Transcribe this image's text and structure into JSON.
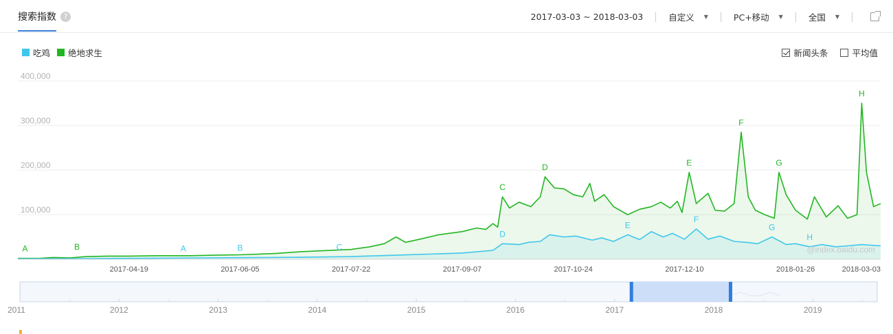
{
  "header": {
    "title": "搜索指数",
    "help_icon": "question-circle-icon",
    "date_range": "2017-03-03 ~ 2018-03-03",
    "period_label": "自定义",
    "device_label": "PC+移动",
    "region_label": "全国",
    "export_icon": "external-link-icon"
  },
  "legend": [
    {
      "name": "吃鸡",
      "color": "#3fc6ec"
    },
    {
      "name": "绝地求生",
      "color": "#22b522"
    }
  ],
  "toggles": {
    "news": {
      "label": "新闻头条",
      "checked": true
    },
    "average": {
      "label": "平均值",
      "checked": false
    }
  },
  "watermark": "@index.baidu.com",
  "chart_data": {
    "type": "line",
    "x_start": "2017-03-03",
    "x_end": "2018-03-03",
    "xtick_labels": [
      "2017-04-19",
      "2017-06-05",
      "2017-07-22",
      "2017-09-07",
      "2017-10-24",
      "2017-12-10",
      "2018-01-26",
      "2018-03-03"
    ],
    "xtick_dates": [
      "2017-04-19",
      "2017-06-05",
      "2017-07-22",
      "2017-09-07",
      "2017-10-24",
      "2017-12-10",
      "2018-01-26",
      "2018-03-03"
    ],
    "ylim": [
      0,
      400000
    ],
    "ytick_values": [
      100000,
      200000,
      300000,
      400000
    ],
    "ytick_labels": [
      "100,000",
      "200,000",
      "300,000",
      "400,000"
    ],
    "grid": true,
    "series": [
      {
        "name": "绝地求生",
        "color": "#22b522",
        "points": [
          [
            "2017-03-03",
            2000
          ],
          [
            "2017-03-12",
            2000
          ],
          [
            "2017-03-18",
            4000
          ],
          [
            "2017-03-25",
            3000
          ],
          [
            "2017-04-01",
            6000
          ],
          [
            "2017-04-10",
            7000
          ],
          [
            "2017-04-19",
            7000
          ],
          [
            "2017-05-01",
            8000
          ],
          [
            "2017-05-15",
            8000
          ],
          [
            "2017-05-25",
            9000
          ],
          [
            "2017-06-05",
            10000
          ],
          [
            "2017-06-20",
            13000
          ],
          [
            "2017-07-01",
            17000
          ],
          [
            "2017-07-22",
            22000
          ],
          [
            "2017-07-30",
            28000
          ],
          [
            "2017-08-05",
            35000
          ],
          [
            "2017-08-10",
            50000
          ],
          [
            "2017-08-14",
            38000
          ],
          [
            "2017-08-20",
            45000
          ],
          [
            "2017-08-28",
            55000
          ],
          [
            "2017-09-07",
            62000
          ],
          [
            "2017-09-13",
            70000
          ],
          [
            "2017-09-17",
            67000
          ],
          [
            "2017-09-20",
            80000
          ],
          [
            "2017-09-22",
            72000
          ],
          [
            "2017-09-24",
            140000
          ],
          [
            "2017-09-27",
            115000
          ],
          [
            "2017-10-01",
            128000
          ],
          [
            "2017-10-06",
            118000
          ],
          [
            "2017-10-10",
            140000
          ],
          [
            "2017-10-12",
            185000
          ],
          [
            "2017-10-16",
            160000
          ],
          [
            "2017-10-20",
            158000
          ],
          [
            "2017-10-24",
            145000
          ],
          [
            "2017-10-28",
            140000
          ],
          [
            "2017-10-31",
            170000
          ],
          [
            "2017-11-02",
            130000
          ],
          [
            "2017-11-06",
            145000
          ],
          [
            "2017-11-10",
            118000
          ],
          [
            "2017-11-16",
            100000
          ],
          [
            "2017-11-21",
            112000
          ],
          [
            "2017-11-26",
            118000
          ],
          [
            "2017-11-30",
            128000
          ],
          [
            "2017-12-04",
            115000
          ],
          [
            "2017-12-07",
            130000
          ],
          [
            "2017-12-09",
            105000
          ],
          [
            "2017-12-12",
            195000
          ],
          [
            "2017-12-15",
            125000
          ],
          [
            "2017-12-20",
            148000
          ],
          [
            "2017-12-23",
            110000
          ],
          [
            "2017-12-27",
            108000
          ],
          [
            "2017-12-31",
            125000
          ],
          [
            "2018-01-03",
            285000
          ],
          [
            "2018-01-06",
            140000
          ],
          [
            "2018-01-09",
            110000
          ],
          [
            "2018-01-13",
            100000
          ],
          [
            "2018-01-17",
            92000
          ],
          [
            "2018-01-19",
            195000
          ],
          [
            "2018-01-22",
            145000
          ],
          [
            "2018-01-26",
            110000
          ],
          [
            "2018-01-31",
            90000
          ],
          [
            "2018-02-03",
            140000
          ],
          [
            "2018-02-08",
            95000
          ],
          [
            "2018-02-13",
            120000
          ],
          [
            "2018-02-17",
            92000
          ],
          [
            "2018-02-21",
            100000
          ],
          [
            "2018-02-23",
            350000
          ],
          [
            "2018-02-25",
            195000
          ],
          [
            "2018-02-28",
            118000
          ],
          [
            "2018-03-03",
            125000
          ]
        ]
      },
      {
        "name": "吃鸡",
        "color": "#3fc6ec",
        "points": [
          [
            "2017-03-03",
            1000
          ],
          [
            "2017-04-01",
            1500
          ],
          [
            "2017-05-01",
            2500
          ],
          [
            "2017-06-05",
            3500
          ],
          [
            "2017-07-01",
            4500
          ],
          [
            "2017-07-22",
            6000
          ],
          [
            "2017-08-10",
            9000
          ],
          [
            "2017-09-07",
            14000
          ],
          [
            "2017-09-20",
            20000
          ],
          [
            "2017-09-24",
            35000
          ],
          [
            "2017-10-01",
            33000
          ],
          [
            "2017-10-05",
            38000
          ],
          [
            "2017-10-10",
            40000
          ],
          [
            "2017-10-14",
            55000
          ],
          [
            "2017-10-20",
            50000
          ],
          [
            "2017-10-25",
            52000
          ],
          [
            "2017-11-01",
            43000
          ],
          [
            "2017-11-05",
            48000
          ],
          [
            "2017-11-10",
            40000
          ],
          [
            "2017-11-16",
            55000
          ],
          [
            "2017-11-21",
            44000
          ],
          [
            "2017-11-26",
            62000
          ],
          [
            "2017-12-01",
            50000
          ],
          [
            "2017-12-05",
            58000
          ],
          [
            "2017-12-10",
            45000
          ],
          [
            "2017-12-15",
            68000
          ],
          [
            "2017-12-20",
            45000
          ],
          [
            "2017-12-25",
            52000
          ],
          [
            "2017-12-31",
            40000
          ],
          [
            "2018-01-05",
            38000
          ],
          [
            "2018-01-10",
            35000
          ],
          [
            "2018-01-16",
            50000
          ],
          [
            "2018-01-22",
            33000
          ],
          [
            "2018-01-26",
            35000
          ],
          [
            "2018-02-01",
            28000
          ],
          [
            "2018-02-06",
            33000
          ],
          [
            "2018-02-12",
            28000
          ],
          [
            "2018-02-17",
            30000
          ],
          [
            "2018-02-23",
            33000
          ],
          [
            "2018-03-03",
            30000
          ]
        ]
      }
    ],
    "annotations": [
      {
        "series": "绝地求生",
        "label": "A",
        "date": "2017-03-06",
        "value": 2000
      },
      {
        "series": "绝地求生",
        "label": "B",
        "date": "2017-03-28",
        "value": 6000
      },
      {
        "series": "绝地求生",
        "label": "C",
        "date": "2017-09-24",
        "value": 140000
      },
      {
        "series": "绝地求生",
        "label": "D",
        "date": "2017-10-12",
        "value": 185000
      },
      {
        "series": "绝地求生",
        "label": "E",
        "date": "2017-12-12",
        "value": 195000
      },
      {
        "series": "绝地求生",
        "label": "F",
        "date": "2018-01-03",
        "value": 285000
      },
      {
        "series": "绝地求生",
        "label": "G",
        "date": "2018-01-19",
        "value": 195000
      },
      {
        "series": "绝地求生",
        "label": "H",
        "date": "2018-02-23",
        "value": 350000
      },
      {
        "series": "吃鸡",
        "label": "A",
        "date": "2017-05-12",
        "value": 2500
      },
      {
        "series": "吃鸡",
        "label": "B",
        "date": "2017-06-05",
        "value": 3500
      },
      {
        "series": "吃鸡",
        "label": "C",
        "date": "2017-07-17",
        "value": 5500
      },
      {
        "series": "吃鸡",
        "label": "D",
        "date": "2017-09-24",
        "value": 35000
      },
      {
        "series": "吃鸡",
        "label": "E",
        "date": "2017-11-16",
        "value": 55000
      },
      {
        "series": "吃鸡",
        "label": "F",
        "date": "2017-12-15",
        "value": 68000
      },
      {
        "series": "吃鸡",
        "label": "G",
        "date": "2018-01-16",
        "value": 50000
      },
      {
        "series": "吃鸡",
        "label": "H",
        "date": "2018-02-01",
        "value": 28000
      }
    ]
  },
  "navigator": {
    "year_labels": [
      "2011",
      "2012",
      "2013",
      "2014",
      "2015",
      "2016",
      "2017",
      "2018",
      "2019"
    ],
    "range_start": 2011.0,
    "range_end": 2019.65,
    "selected_start": 2017.17,
    "selected_end": 2018.17
  }
}
